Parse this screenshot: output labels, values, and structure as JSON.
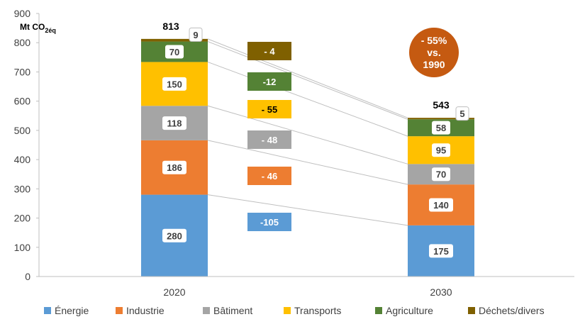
{
  "chart_data": {
    "type": "bar",
    "stacked": true,
    "categories": [
      "2020",
      "2030"
    ],
    "unit_label": "Mt CO",
    "unit_sub": "2éq",
    "ylim": [
      0,
      900
    ],
    "yticks": [
      0,
      100,
      200,
      300,
      400,
      500,
      600,
      700,
      800,
      900
    ],
    "series": [
      {
        "name": "Énergie",
        "color": "#5B9BD5",
        "values": [
          280,
          175
        ]
      },
      {
        "name": "Industrie",
        "color": "#ED7D31",
        "values": [
          186,
          140
        ]
      },
      {
        "name": "Bâtiment",
        "color": "#A5A5A5",
        "values": [
          118,
          70
        ]
      },
      {
        "name": "Transports",
        "color": "#FFC000",
        "values": [
          150,
          95
        ]
      },
      {
        "name": "Agriculture",
        "color": "#548235",
        "values": [
          70,
          58
        ]
      },
      {
        "name": "Déchets/divers",
        "color": "#7F6000",
        "values": [
          9,
          5
        ]
      }
    ],
    "totals": [
      "813",
      "543"
    ],
    "deltas": [
      {
        "label": "-105",
        "series": "Énergie"
      },
      {
        "label": "- 46",
        "series": "Industrie"
      },
      {
        "label": "- 48",
        "series": "Bâtiment"
      },
      {
        "label": "- 55",
        "series": "Transports"
      },
      {
        "label": "-12",
        "series": "Agriculture"
      },
      {
        "label": "- 4",
        "series": "Déchets/divers"
      }
    ],
    "reduction_badge": [
      "- 55%",
      "vs.",
      "1990"
    ],
    "badge_color": "#C55A11"
  }
}
